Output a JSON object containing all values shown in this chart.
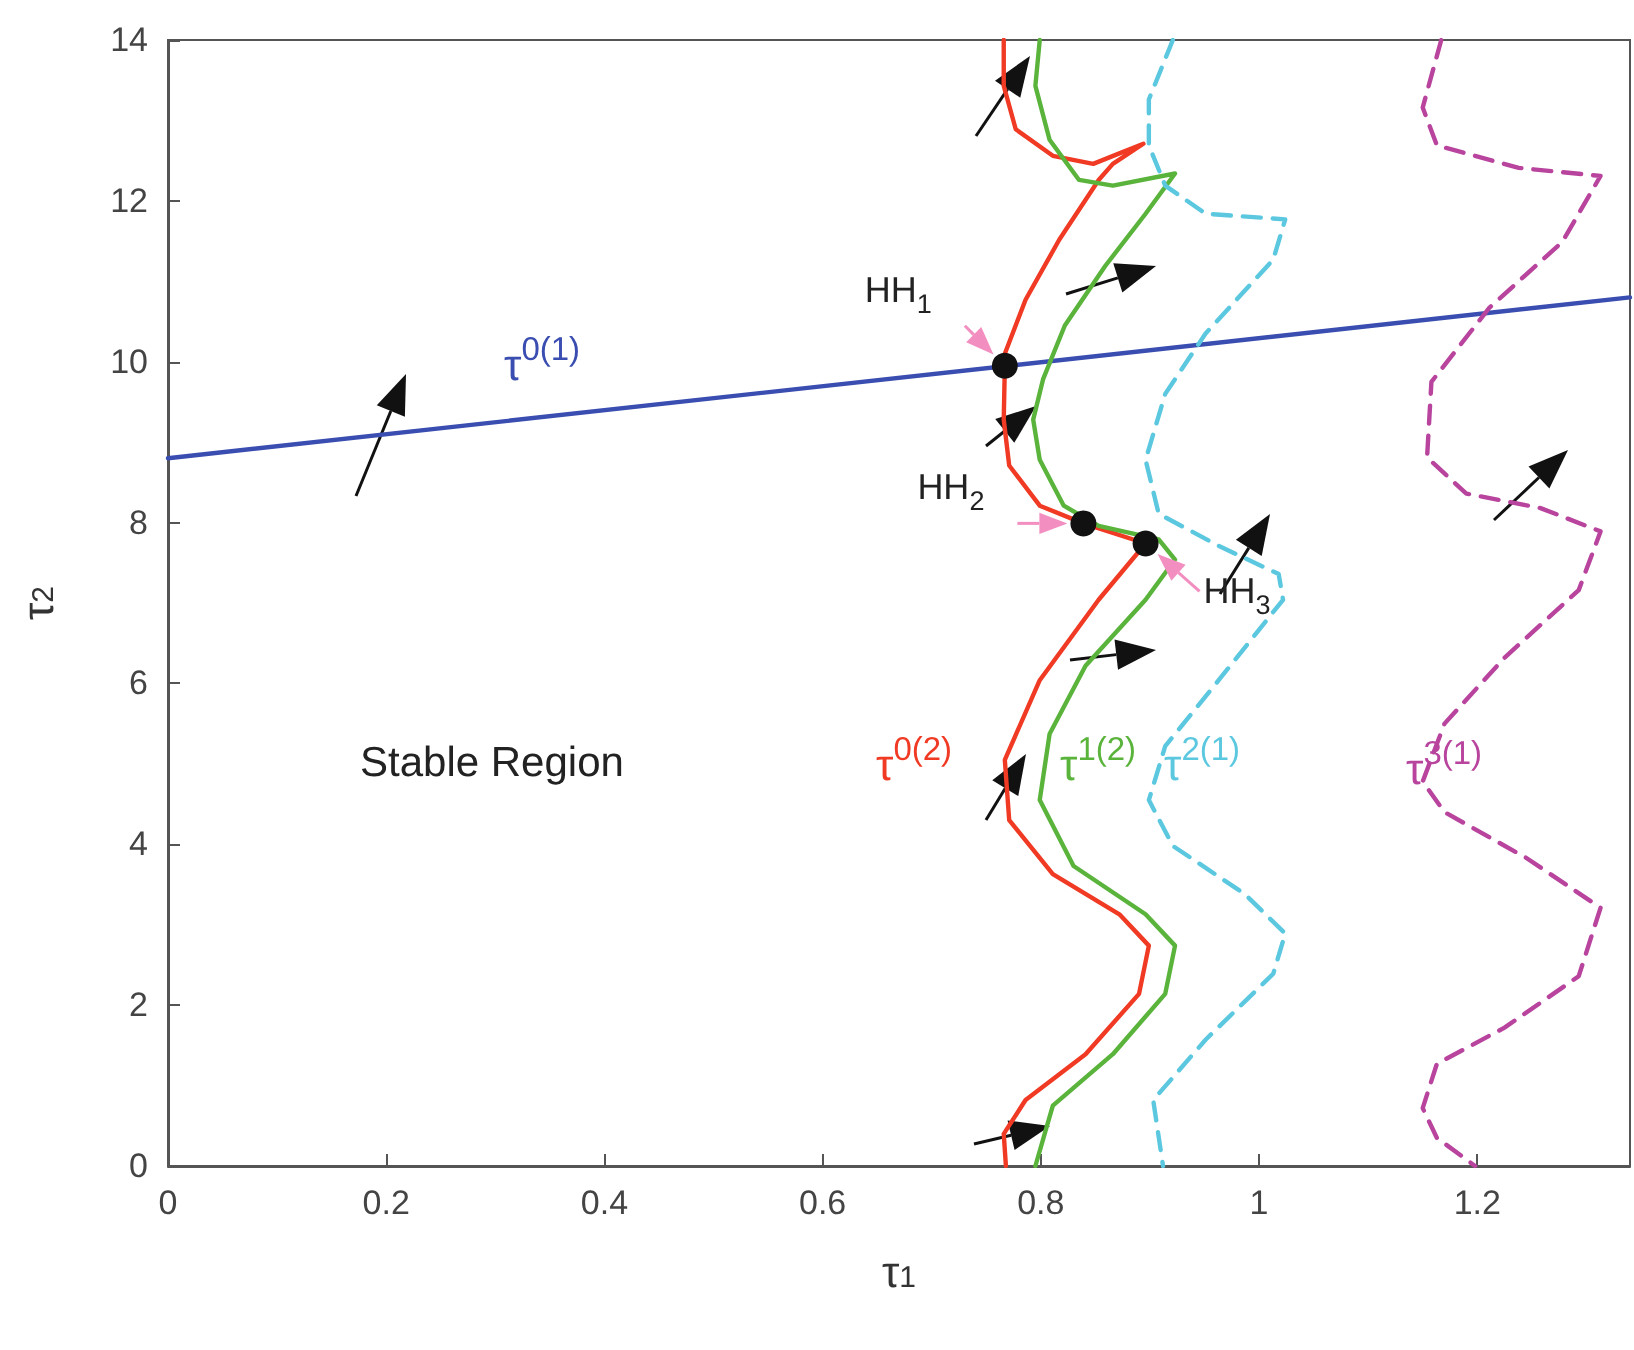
{
  "chart_data": {
    "type": "line",
    "xlabel": "τ$_{1}$",
    "ylabel": "τ$_{2}$",
    "xlim": [
      0,
      1.34
    ],
    "ylim": [
      0,
      14
    ],
    "xticks": [
      0,
      0.2,
      0.4,
      0.6,
      0.8,
      1,
      1.2
    ],
    "yticks": [
      0,
      2,
      4,
      6,
      8,
      10,
      12,
      14
    ],
    "grid": false,
    "legend": false,
    "series": [
      {
        "name": "τ$^{0(1)}$",
        "type": "line",
        "color": "#3a4db0",
        "line_style": "solid",
        "marker": "none",
        "x": [
          0,
          1.34
        ],
        "values": [
          8.8,
          10.8
        ]
      },
      {
        "name": "τ$^{0(2)}$",
        "type": "line",
        "color": "#f03a24",
        "line_style": "solid",
        "marker": "none",
        "x": [
          0.766,
          0.766,
          0.777,
          0.811,
          0.848,
          0.872,
          0.894,
          0.866,
          0.853,
          0.817,
          0.786,
          0.767,
          0.767,
          0.766,
          0.771,
          0.799,
          0.839,
          0.896,
          0.853,
          0.799,
          0.767,
          0.771,
          0.811,
          0.872,
          0.899,
          0.89,
          0.841,
          0.786,
          0.766,
          0.768
        ],
        "values": [
          14,
          13.43,
          12.89,
          12.56,
          12.46,
          12.59,
          12.71,
          12.46,
          12.26,
          11.52,
          10.77,
          10.1,
          9.95,
          9.28,
          8.71,
          8.21,
          7.99,
          7.74,
          7.04,
          6.04,
          5.05,
          4.3,
          3.63,
          3.13,
          2.74,
          2.14,
          1.39,
          0.82,
          0.4,
          0
        ]
      },
      {
        "name": "τ$^{1(2)}$",
        "type": "line",
        "color": "#5ab43c",
        "line_style": "solid",
        "marker": "none",
        "x": [
          0.799,
          0.795,
          0.808,
          0.835,
          0.866,
          0.923,
          0.896,
          0.859,
          0.822,
          0.802,
          0.793,
          0.799,
          0.821,
          0.853,
          0.908,
          0.923,
          0.896,
          0.841,
          0.808,
          0.799,
          0.83,
          0.896,
          0.923,
          0.914,
          0.866,
          0.811,
          0.795
        ],
        "values": [
          14,
          13.43,
          12.76,
          12.26,
          12.19,
          12.34,
          11.84,
          11.19,
          10.45,
          9.78,
          9.28,
          8.78,
          8.21,
          7.96,
          7.79,
          7.54,
          7.04,
          6.22,
          5.37,
          4.55,
          3.73,
          3.13,
          2.74,
          2.14,
          1.39,
          0.75,
          0
        ]
      },
      {
        "name": "τ$^{2(1)}$",
        "type": "line",
        "color": "#5bc8e0",
        "line_style": "dashed",
        "marker": "none",
        "x": [
          0.921,
          0.899,
          0.899,
          0.914,
          0.951,
          1.024,
          1.013,
          0.951,
          0.914,
          0.896,
          0.908,
          0.963,
          1.018,
          1.022,
          0.963,
          0.914,
          0.899,
          0.921,
          0.987,
          1.024,
          1.013,
          0.951,
          0.903,
          0.912
        ],
        "values": [
          14,
          13.26,
          12.69,
          12.19,
          11.84,
          11.77,
          11.27,
          10.35,
          9.6,
          8.78,
          8.11,
          7.71,
          7.36,
          7.04,
          6.04,
          5.22,
          4.55,
          3.98,
          3.38,
          2.89,
          2.39,
          1.57,
          0.82,
          0
        ]
      },
      {
        "name": "τ$^{3(1)}$",
        "type": "line",
        "color": "#b8449e",
        "line_style": "dashed",
        "marker": "none",
        "x": [
          1.167,
          1.15,
          1.163,
          1.238,
          1.313,
          1.278,
          1.211,
          1.158,
          1.154,
          1.19,
          1.258,
          1.313,
          1.293,
          1.225,
          1.17,
          1.15,
          1.17,
          1.245,
          1.313,
          1.293,
          1.225,
          1.163,
          1.15,
          1.163,
          1.198
        ],
        "values": [
          14,
          13.16,
          12.69,
          12.41,
          12.31,
          11.49,
          10.67,
          9.75,
          8.81,
          8.36,
          8.18,
          7.89,
          7.16,
          6.32,
          5.5,
          4.78,
          4.4,
          3.83,
          3.21,
          2.36,
          1.72,
          1.27,
          0.72,
          0.35,
          0
        ]
      },
      {
        "type": "scatter",
        "color": "#111111",
        "marker": "circle",
        "x": [
          0.767,
          0.839,
          0.896
        ],
        "values": [
          9.95,
          7.99,
          7.74
        ]
      }
    ],
    "annotations": [
      "Stable Region",
      {
        "text": "HH$_{1}$",
        "x": 0.767,
        "y": 9.95
      },
      {
        "text": "HH$_{2}$",
        "x": 0.839,
        "y": 7.99
      },
      {
        "text": "HH$_{3}$",
        "x": 0.896,
        "y": 7.74
      }
    ]
  }
}
